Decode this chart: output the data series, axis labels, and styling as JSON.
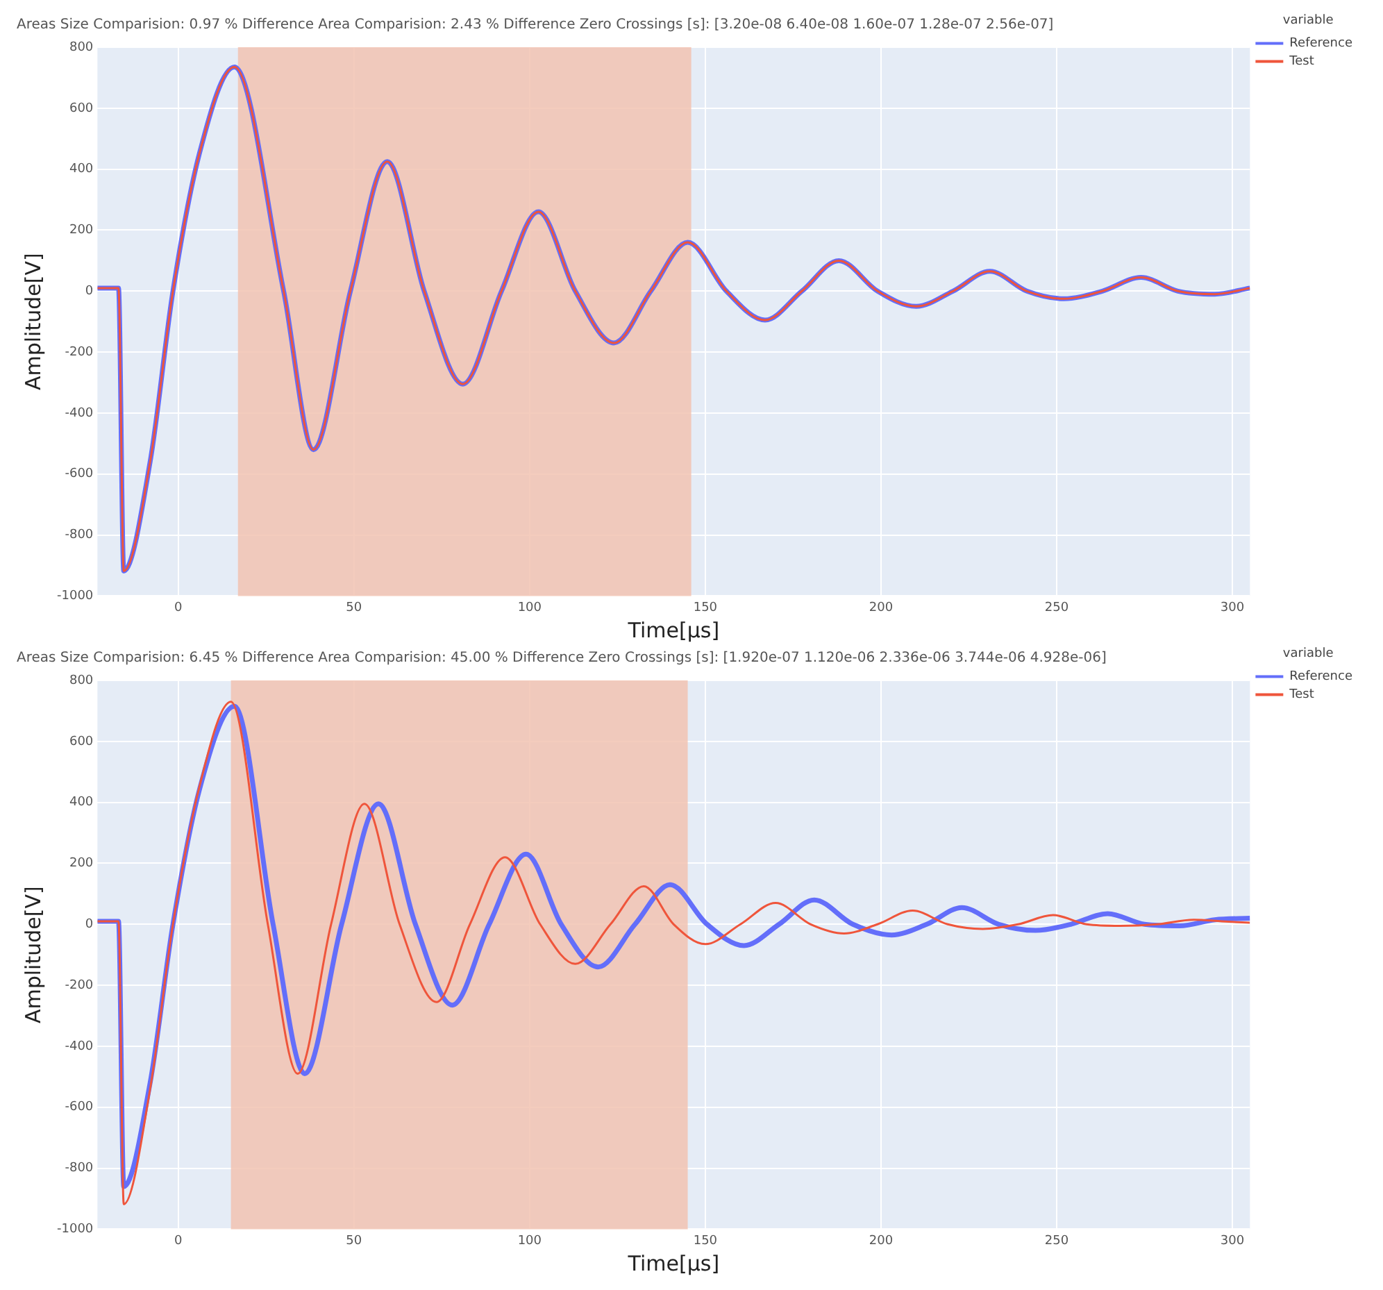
{
  "chart_data": [
    {
      "type": "line",
      "title": "Areas Size Comparision: 0.97 % Difference Area Comparision: 2.43 % Difference Zero Crossings [s]: [3.20e-08 6.40e-08 1.60e-07 1.28e-07 2.56e-07]",
      "xlabel": "Time[µs]",
      "ylabel": "Amplitude[V]",
      "legend_title": "variable",
      "legend": "top right",
      "grid": true,
      "marker": "none",
      "line_style": "solid",
      "xlim": [
        -23,
        305
      ],
      "xticks": [
        0,
        50,
        100,
        150,
        200,
        250,
        300
      ],
      "ylim": [
        -1000,
        800
      ],
      "yticks": [
        -1000,
        -800,
        -600,
        -400,
        -200,
        0,
        200,
        400,
        600,
        800
      ],
      "bands": [
        {
          "axis": "x",
          "from": 17,
          "to": 146,
          "color": "#f2c3b1"
        }
      ],
      "series": [
        {
          "name": "Reference",
          "color": "#636efa",
          "x": [
            -23,
            -17,
            -15.5,
            -8,
            -1.5,
            6,
            16,
            30,
            38.5,
            49,
            59.5,
            70,
            81,
            92,
            102.5,
            113,
            124,
            134.5,
            145,
            156,
            167,
            177.5,
            188,
            199,
            210,
            220.5,
            231,
            241.5,
            252,
            263,
            274,
            284.5,
            295,
            305
          ],
          "values": [
            10,
            10,
            -918,
            -560,
            0,
            450,
            735,
            0,
            -520,
            0,
            425,
            0,
            -305,
            0,
            260,
            0,
            -170,
            0,
            160,
            0,
            -95,
            0,
            100,
            0,
            -50,
            0,
            65,
            0,
            -25,
            0,
            45,
            0,
            -10,
            10
          ]
        },
        {
          "name": "Test",
          "color": "#ef553b",
          "x": [
            -23,
            -17,
            -15.5,
            -8,
            -1.5,
            6,
            16,
            30,
            38.5,
            49,
            59.5,
            70,
            81,
            92,
            102.5,
            113,
            124,
            134.5,
            145,
            156,
            167,
            177.5,
            188,
            199,
            210,
            220.5,
            231,
            241.5,
            252,
            263,
            274,
            284.5,
            295,
            305
          ],
          "values": [
            10,
            10,
            -918,
            -560,
            0,
            450,
            735,
            0,
            -520,
            0,
            425,
            0,
            -305,
            0,
            260,
            0,
            -170,
            0,
            160,
            0,
            -95,
            0,
            100,
            0,
            -50,
            0,
            65,
            0,
            -25,
            0,
            45,
            0,
            -10,
            10
          ]
        }
      ]
    },
    {
      "type": "line",
      "title": "Areas Size Comparision: 6.45 % Difference Area Comparision: 45.00 % Difference Zero Crossings [s]: [1.920e-07 1.120e-06 2.336e-06 3.744e-06 4.928e-06]",
      "xlabel": "Time[µs]",
      "ylabel": "Amplitude[V]",
      "legend_title": "variable",
      "legend": "top right",
      "grid": true,
      "marker": "none",
      "line_style": "solid",
      "xlim": [
        -23,
        305
      ],
      "xticks": [
        0,
        50,
        100,
        150,
        200,
        250,
        300
      ],
      "ylim": [
        -1000,
        800
      ],
      "yticks": [
        -1000,
        -800,
        -600,
        -400,
        -200,
        0,
        200,
        400,
        600,
        800
      ],
      "bands": [
        {
          "axis": "x",
          "from": 15,
          "to": 145,
          "color": "#f2c3b1"
        }
      ],
      "series": [
        {
          "name": "Reference",
          "color": "#636efa",
          "x": [
            -23,
            -17,
            -15.5,
            -8,
            -1.5,
            6,
            16,
            27,
            36,
            46.5,
            57,
            67.5,
            78,
            88.5,
            99,
            109,
            119.5,
            130,
            140,
            150.5,
            161,
            171,
            181,
            192,
            203,
            213,
            223,
            233.5,
            244,
            254,
            264.5,
            275,
            285,
            295,
            305
          ],
          "values": [
            10,
            10,
            -860,
            -520,
            0,
            440,
            715,
            0,
            -490,
            0,
            395,
            0,
            -265,
            0,
            230,
            0,
            -140,
            0,
            130,
            0,
            -70,
            0,
            80,
            0,
            -35,
            0,
            55,
            0,
            -20,
            0,
            35,
            0,
            -5,
            15,
            20
          ]
        },
        {
          "name": "Test",
          "color": "#ef553b",
          "x": [
            -23,
            -17,
            -15.5,
            -8,
            -1.5,
            6,
            15,
            25.5,
            34,
            43.5,
            53,
            63,
            73.5,
            83,
            93,
            103,
            113,
            123,
            132.5,
            141,
            150,
            160,
            170,
            180,
            189.5,
            199,
            209,
            219,
            229,
            239,
            249,
            258.5,
            268,
            278.5,
            289,
            297,
            305
          ],
          "values": [
            10,
            10,
            -918,
            -540,
            0,
            450,
            730,
            0,
            -490,
            0,
            395,
            0,
            -255,
            0,
            220,
            0,
            -130,
            0,
            125,
            0,
            -65,
            0,
            70,
            0,
            -30,
            0,
            45,
            0,
            -15,
            0,
            30,
            0,
            -5,
            0,
            15,
            10,
            5
          ]
        }
      ]
    }
  ]
}
